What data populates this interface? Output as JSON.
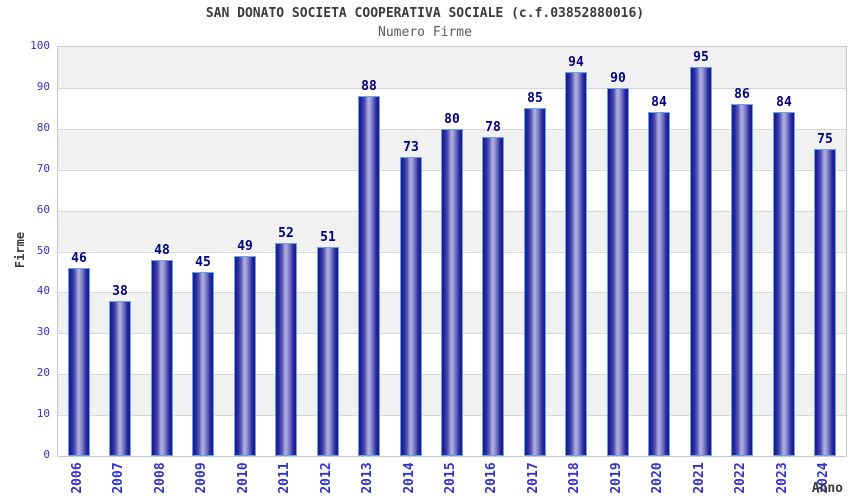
{
  "header": {
    "title": "SAN DONATO SOCIETA COOPERATIVA SOCIALE (c.f.03852880016)",
    "subtitle": "Numero Firme"
  },
  "chart_data": {
    "type": "bar",
    "title": "SAN DONATO SOCIETA COOPERATIVA SOCIALE (c.f.03852880016)",
    "subtitle": "Numero Firme",
    "xlabel": "Anno",
    "ylabel": "Firme",
    "categories": [
      "2006",
      "2007",
      "2008",
      "2009",
      "2010",
      "2011",
      "2012",
      "2013",
      "2014",
      "2015",
      "2016",
      "2017",
      "2018",
      "2019",
      "2020",
      "2021",
      "2022",
      "2023",
      "2024"
    ],
    "values": [
      46,
      38,
      48,
      45,
      49,
      52,
      51,
      88,
      73,
      80,
      78,
      85,
      94,
      90,
      84,
      95,
      86,
      84,
      75
    ],
    "ylim": [
      0,
      100
    ],
    "y_ticks": [
      0,
      10,
      20,
      30,
      40,
      50,
      60,
      70,
      80,
      90,
      100
    ],
    "grid": "horizontal gridlines every 10 with alternating gray/white bands",
    "legend": "none",
    "colors": {
      "bar_edge_dark": "#1b1b8f",
      "bar_mid": "#5555b5",
      "bar_highlight": "#a9a9de",
      "bar_border": "#66a3e8",
      "tick_label_blue": "#3232cc",
      "value_label_navy": "#000080",
      "band_gray": "#f1f1f1",
      "gridline_gray": "#d6d6d6",
      "title_gray": "#3a3a3a",
      "subtitle_gray": "#5a5a5a"
    }
  }
}
